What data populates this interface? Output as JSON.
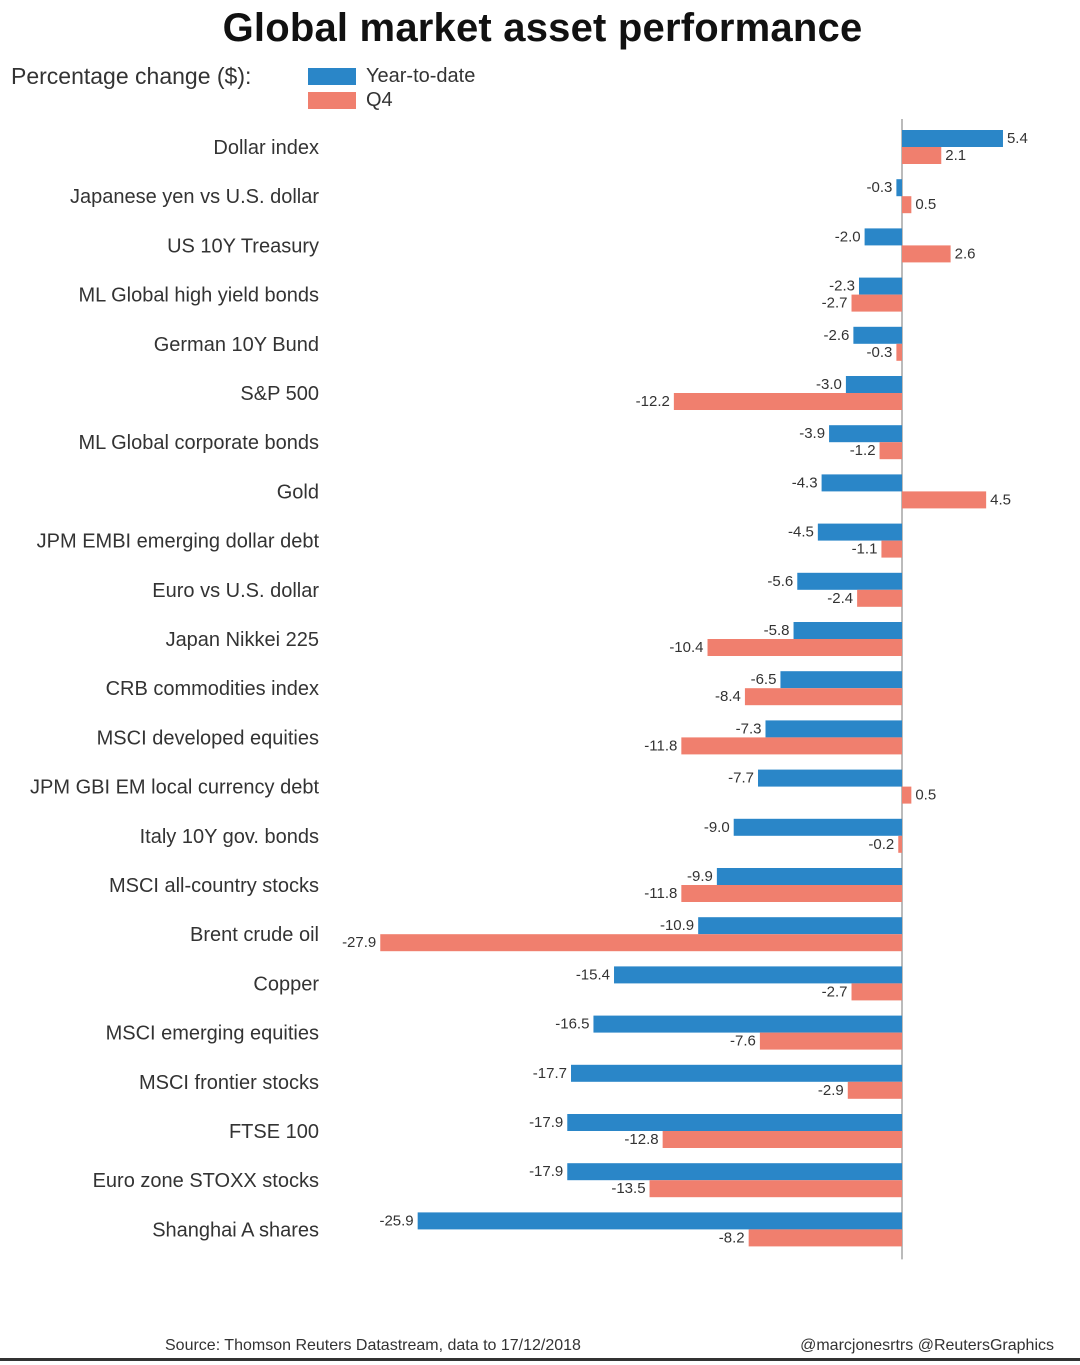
{
  "colors": {
    "ytd": "#2a86c8",
    "q4": "#f07f6e",
    "axis": "#bbbbbb",
    "text": "#333333"
  },
  "chart_data": {
    "type": "bar",
    "orientation": "horizontal",
    "title": "Global market asset performance",
    "subtitle": "Percentage change ($):",
    "xlabel": "",
    "ylabel": "",
    "xlim": [
      -28,
      6
    ],
    "grid": false,
    "legend_position": "top-left",
    "categories": [
      "Dollar index",
      "Japanese yen vs U.S. dollar",
      "US 10Y Treasury",
      "ML Global high yield bonds",
      "German 10Y Bund",
      "S&P 500",
      "ML Global corporate bonds",
      "Gold",
      "JPM EMBI emerging dollar debt",
      "Euro vs U.S. dollar",
      "Japan Nikkei 225",
      "CRB commodities index",
      "MSCI developed equities",
      "JPM GBI EM local currency debt",
      "Italy 10Y gov. bonds",
      "MSCI all-country stocks",
      "Brent crude oil",
      "Copper",
      "MSCI emerging equities",
      "MSCI frontier stocks",
      "FTSE 100",
      "Euro zone STOXX stocks",
      "Shanghai A shares"
    ],
    "series": [
      {
        "name": "Year-to-date",
        "values": [
          5.4,
          -0.3,
          -2.0,
          -2.3,
          -2.6,
          -3.0,
          -3.9,
          -4.3,
          -4.5,
          -5.6,
          -5.8,
          -6.5,
          -7.3,
          -7.7,
          -9.0,
          -9.9,
          -10.9,
          -15.4,
          -16.5,
          -17.7,
          -17.9,
          -17.9,
          -25.9
        ],
        "labels": [
          "5.4",
          "-0.3",
          "-2.0",
          "-2.3",
          "-2.6",
          "-3.0",
          "-3.9",
          "-4.3",
          "-4.5",
          "-5.6",
          "-5.8",
          "-6.5",
          "-7.3",
          "-7.7",
          "-9.0",
          "-9.9",
          "-10.9",
          "-15.4",
          "-16.5",
          "-17.7",
          "-17.9",
          "-17.9",
          "-25.9"
        ]
      },
      {
        "name": "Q4",
        "values": [
          2.1,
          0.5,
          2.6,
          -2.7,
          -0.3,
          -12.2,
          -1.2,
          4.5,
          -1.1,
          -2.4,
          -10.4,
          -8.4,
          -11.8,
          0.5,
          -0.2,
          -11.8,
          -27.9,
          -2.7,
          -7.6,
          -2.9,
          -12.8,
          -13.5,
          -8.2
        ],
        "labels": [
          "2.1",
          "0.5",
          "2.6",
          "-2.7",
          "-0.3",
          "-12.2",
          "-1.2",
          "4.5",
          "-1.1",
          "-2.4",
          "-10.4",
          "-8.4",
          "-11.8",
          "0.5",
          "-0.2",
          "-11.8",
          "-27.9",
          "-2.7",
          "-7.6",
          "-2.9",
          "-12.8",
          "-13.5",
          "-8.2"
        ]
      }
    ]
  },
  "legend": {
    "ytd_label": "Year-to-date",
    "q4_label": "Q4"
  },
  "footer": {
    "source": "Source: Thomson Reuters Datastream, data to 17/12/2018",
    "credit": "@marcjonesrtrs @ReutersGraphics"
  }
}
